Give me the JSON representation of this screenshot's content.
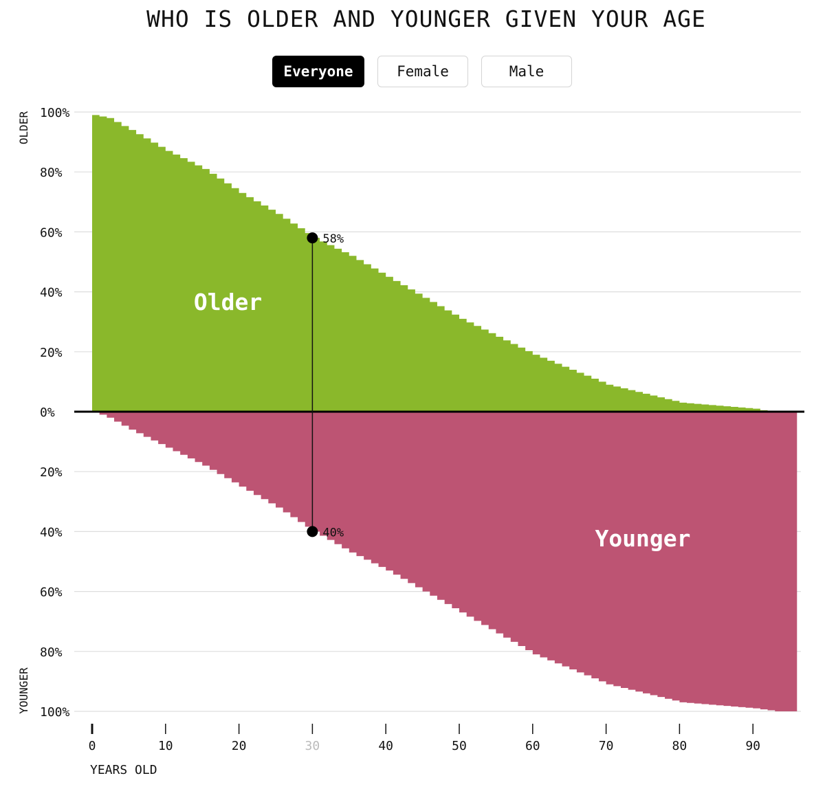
{
  "title": "WHO IS OLDER AND YOUNGER GIVEN YOUR AGE",
  "filters": [
    {
      "label": "Everyone",
      "active": true
    },
    {
      "label": "Female",
      "active": false
    },
    {
      "label": "Male",
      "active": false
    }
  ],
  "colors": {
    "older": "#8ab82b",
    "younger": "#bd5473",
    "grid": "#dddddd",
    "axis": "#000000",
    "highlight_tick": "#bbbbbb"
  },
  "chart_data": {
    "type": "area",
    "title": "WHO IS OLDER AND YOUNGER GIVEN YOUR AGE",
    "xlabel": "YEARS OLD",
    "ylabel_top": "OLDER",
    "ylabel_bottom": "YOUNGER",
    "xlim": [
      0,
      96
    ],
    "ylim": [
      -100,
      100
    ],
    "x_ticks": [
      0,
      10,
      20,
      30,
      40,
      50,
      60,
      70,
      80,
      90
    ],
    "y_tick_values": [
      100,
      80,
      60,
      40,
      20,
      0,
      -20,
      -40,
      -60,
      -80,
      -100
    ],
    "y_tick_labels": [
      "100%",
      "80%",
      "60%",
      "40%",
      "20%",
      "0%",
      "20%",
      "40%",
      "60%",
      "80%",
      "100%"
    ],
    "highlight_age": 30,
    "annotations": {
      "older_label": "58%",
      "younger_label": "40%",
      "older_value": 58,
      "younger_value": 40
    },
    "area_labels": {
      "older": "Older",
      "younger": "Younger"
    },
    "series": [
      {
        "name": "Older",
        "x": [
          0,
          2,
          5,
          10,
          15,
          20,
          25,
          30,
          35,
          40,
          45,
          50,
          55,
          60,
          65,
          70,
          75,
          80,
          85,
          90,
          92
        ],
        "values": [
          99,
          98,
          94,
          87,
          81,
          73,
          66,
          58,
          52,
          45,
          38,
          31,
          25,
          19,
          14,
          9,
          6,
          3,
          2,
          1,
          0
        ]
      },
      {
        "name": "Younger",
        "x": [
          0,
          2,
          5,
          10,
          15,
          20,
          25,
          30,
          35,
          40,
          45,
          50,
          55,
          60,
          65,
          70,
          75,
          80,
          85,
          90,
          93,
          96
        ],
        "values": [
          0,
          2,
          6,
          12,
          18,
          25,
          32,
          40,
          47,
          53,
          60,
          67,
          74,
          81,
          86,
          91,
          94,
          97,
          98,
          99,
          100,
          100
        ]
      }
    ]
  }
}
